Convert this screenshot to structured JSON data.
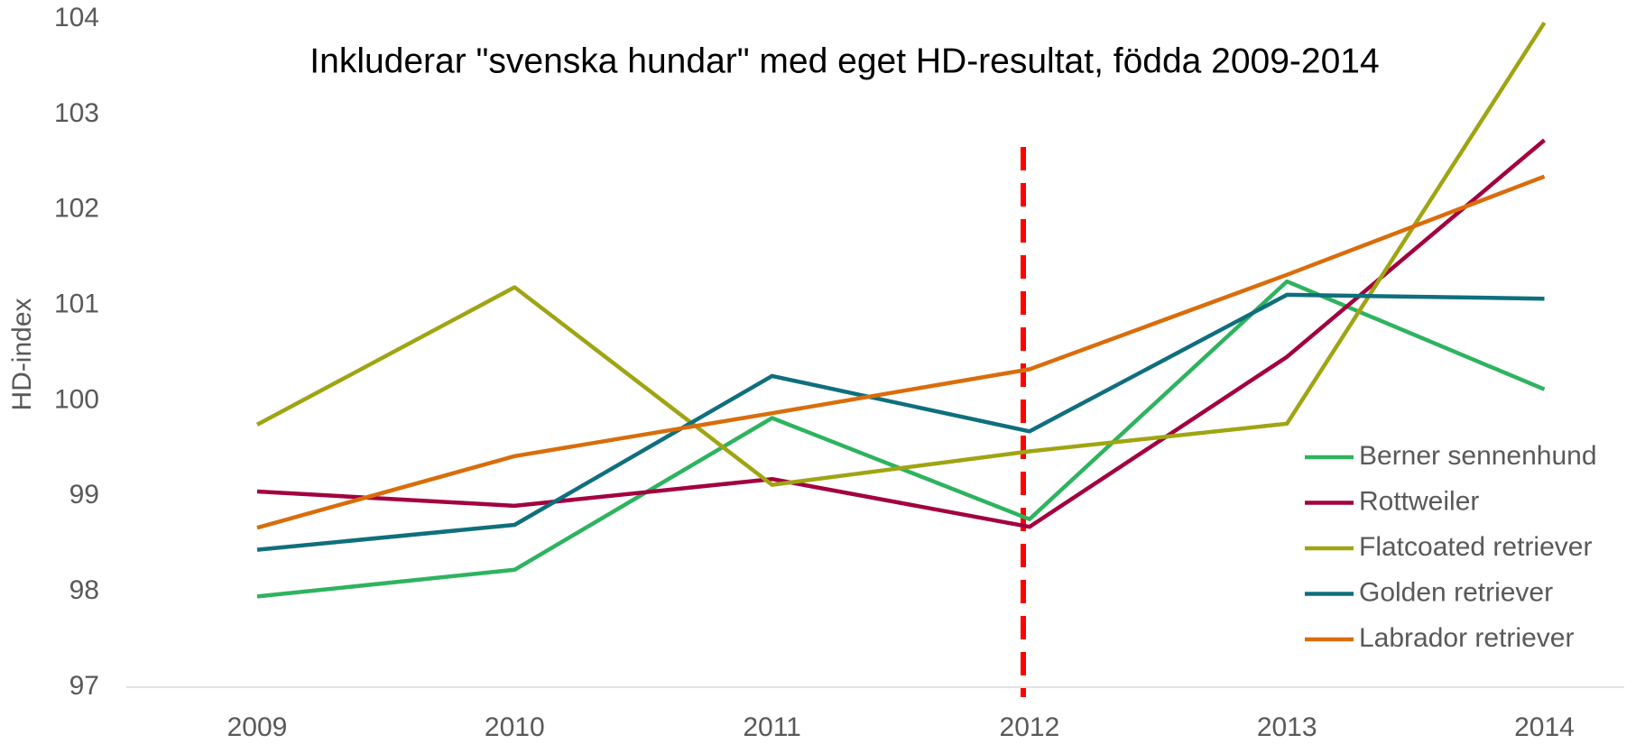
{
  "chart_data": {
    "type": "line",
    "title": "Inkluderar \"svenska hundar\" med eget HD-resultat, födda 2009-2014",
    "y_label": "HD-index",
    "categories": [
      "2009",
      "2010",
      "2011",
      "2012",
      "2013",
      "2014"
    ],
    "series": [
      {
        "name": "Berner sennenhund",
        "color": "#2eb35f",
        "values": [
          97.95,
          98.23,
          99.82,
          98.76,
          101.25,
          100.12
        ]
      },
      {
        "name": "Rottweiler",
        "color": "#a3003f",
        "values": [
          99.05,
          98.9,
          99.18,
          98.68,
          100.46,
          102.73
        ]
      },
      {
        "name": "Flatcoated retriever",
        "color": "#9fa512",
        "values": [
          99.75,
          101.19,
          99.12,
          99.47,
          99.76,
          103.96
        ]
      },
      {
        "name": "Golden retriever",
        "color": "#0f6f7c",
        "values": [
          98.44,
          98.7,
          100.26,
          99.68,
          101.11,
          101.07
        ]
      },
      {
        "name": "Labrador retriever",
        "color": "#d96d0b",
        "values": [
          98.67,
          99.42,
          99.87,
          100.33,
          101.32,
          102.35
        ]
      }
    ],
    "ylim": [
      97,
      104
    ],
    "yticks": [
      97,
      98,
      99,
      100,
      101,
      102,
      103,
      104
    ],
    "grid": false,
    "legend": "right"
  }
}
